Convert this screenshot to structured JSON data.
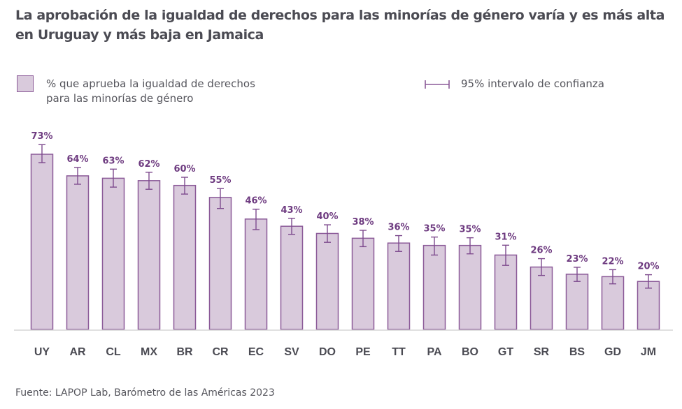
{
  "chart_data": {
    "type": "bar",
    "title": "La aprobación de la igualdad de derechos para las minorías de género varía y es más alta en Uruguay y más baja en Jamaica",
    "xlabel": "",
    "ylabel": "",
    "ylim": [
      0,
      80
    ],
    "grid": false,
    "legend_placement": "top",
    "legend": {
      "bar_label": "% que aprueba la igualdad de derechos para las minorías de género",
      "bar_label_lines": [
        "% que aprueba la igualdad de derechos",
        "para las minorías de género"
      ],
      "ci_label": "95% intervalo de confianza"
    },
    "categories": [
      "UY",
      "AR",
      "CL",
      "MX",
      "BR",
      "CR",
      "EC",
      "SV",
      "DO",
      "PE",
      "TT",
      "PA",
      "BO",
      "GT",
      "SR",
      "BS",
      "GD",
      "JM"
    ],
    "values": [
      73,
      64,
      63,
      62,
      60,
      55,
      46,
      43,
      40,
      38,
      36,
      35,
      35,
      31,
      26,
      23,
      22,
      20
    ],
    "value_labels": [
      "73%",
      "64%",
      "63%",
      "62%",
      "60%",
      "55%",
      "46%",
      "43%",
      "40%",
      "38%",
      "36%",
      "35%",
      "35%",
      "31%",
      "26%",
      "23%",
      "22%",
      "20%"
    ],
    "ci_low": [
      69.5,
      60.5,
      59.3,
      58.4,
      56.4,
      50.4,
      41.6,
      39.6,
      36.3,
      34.5,
      32.5,
      31.0,
      31.5,
      26.7,
      22.5,
      20.0,
      19.0,
      17.2
    ],
    "ci_high": [
      77.0,
      67.5,
      66.8,
      65.5,
      63.4,
      58.7,
      50.1,
      46.3,
      43.6,
      41.3,
      39.1,
      38.5,
      38.2,
      35.1,
      29.5,
      25.9,
      24.9,
      22.8
    ],
    "colors": {
      "bar_fill": "#d9cadc",
      "bar_stroke": "#8b5a98",
      "error_bar": "#7e4b8e",
      "value_label": "#6e3b80",
      "axis": "#d6d6d6",
      "tick_label": "#4b4b53"
    }
  },
  "source": "Fuente: LAPOP Lab, Barómetro de las Américas 2023"
}
